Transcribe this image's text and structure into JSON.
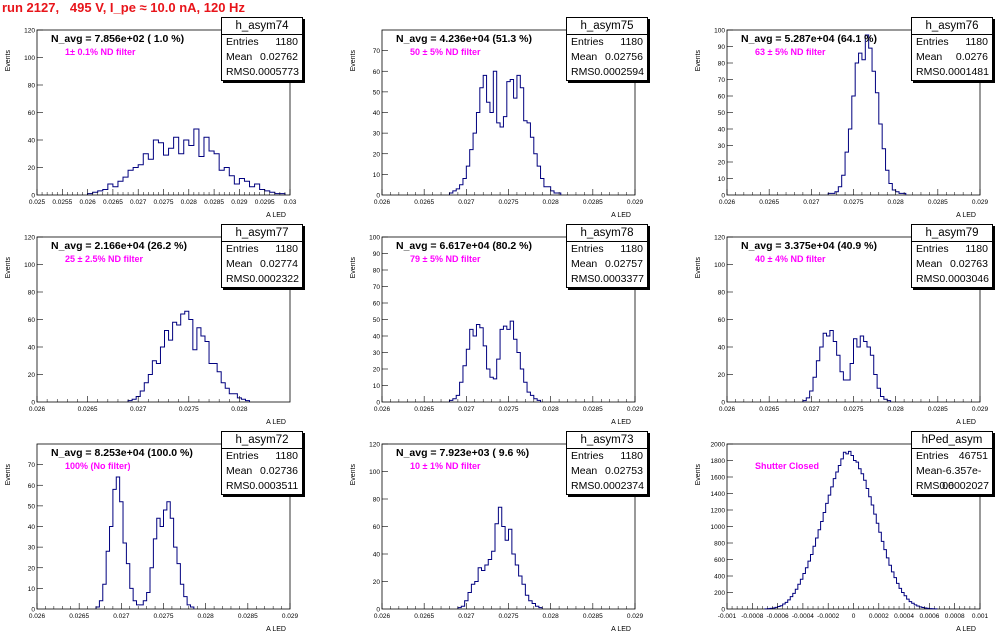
{
  "header": {
    "run_title": "run 2127,   495 V, I_pe ≈ 10.0 nA, 120 Hz"
  },
  "colors": {
    "title": "#e8141a",
    "filter_text": "#ff00ff",
    "histogram_line": "#00007f",
    "axes": "#000000"
  },
  "chart_data": [
    {
      "type": "histogram",
      "name": "h_asym74",
      "ylabel": "Events",
      "xlabel": "A_LED",
      "navg": "N_avg = 7.856e+02 ( 1.0 %)",
      "filter_label": "1± 0.1% ND filter",
      "xlim": [
        0.025,
        0.03
      ],
      "ylim": [
        0,
        120
      ],
      "xticks": [
        "0.025",
        "0.0255",
        "0.026",
        "0.0265",
        "0.027",
        "0.0275",
        "0.028",
        "0.0285",
        "0.029",
        "0.0295",
        "0.03"
      ],
      "yticks": [
        "20",
        "40",
        "60",
        "80",
        "100",
        "120"
      ],
      "stats": {
        "entries": "1180",
        "mean": "0.02762",
        "rms": "0.0005773"
      },
      "bins": {
        "x0": 0.026,
        "w": 0.0001,
        "counts": [
          1,
          2,
          3,
          4,
          8,
          6,
          10,
          13,
          18,
          20,
          22,
          30,
          26,
          40,
          38,
          29,
          34,
          42,
          30,
          40,
          36,
          48,
          28,
          42,
          32,
          30,
          18,
          20,
          14,
          8,
          12,
          10,
          6,
          8,
          4,
          3,
          2,
          1,
          1
        ]
      }
    },
    {
      "type": "histogram",
      "name": "h_asym75",
      "ylabel": "Events",
      "xlabel": "A_LED",
      "navg": "N_avg = 4.236e+04 (51.3 %)",
      "filter_label": "50 ± 5% ND filter",
      "xlim": [
        0.026,
        0.029
      ],
      "ylim": [
        0,
        80
      ],
      "xticks": [
        "0.026",
        "0.0265",
        "0.027",
        "0.0275",
        "0.028",
        "0.0285",
        "0.029"
      ],
      "yticks": [
        "10",
        "20",
        "30",
        "40",
        "50",
        "60",
        "70"
      ],
      "stats": {
        "entries": "1180",
        "mean": "0.02756",
        "rms": "0.0002594"
      },
      "bins": {
        "x0": 0.0268,
        "w": 4e-05,
        "counts": [
          1,
          2,
          3,
          5,
          8,
          14,
          22,
          30,
          40,
          52,
          58,
          45,
          40,
          60,
          35,
          33,
          38,
          55,
          56,
          47,
          58,
          52,
          36,
          35,
          28,
          20,
          14,
          8,
          4,
          4,
          2,
          1,
          1
        ]
      }
    },
    {
      "type": "histogram",
      "name": "h_asym76",
      "ylabel": "Events",
      "xlabel": "A_LED",
      "navg": "N_avg = 5.287e+04 (64.1 %)",
      "filter_label": "63 ± 5% ND filter",
      "xlim": [
        0.026,
        0.029
      ],
      "ylim": [
        0,
        100
      ],
      "xticks": [
        "0.026",
        "0.0265",
        "0.027",
        "0.0275",
        "0.028",
        "0.0285",
        "0.029"
      ],
      "yticks": [
        "10",
        "20",
        "30",
        "40",
        "50",
        "60",
        "70",
        "80",
        "90",
        "100"
      ],
      "stats": {
        "entries": "1180",
        "mean": "0.0276",
        "rms": "0.0001481"
      },
      "bins": {
        "x0": 0.0272,
        "w": 4e-05,
        "counts": [
          1,
          1,
          2,
          5,
          12,
          26,
          40,
          60,
          80,
          86,
          82,
          97,
          89,
          75,
          62,
          43,
          28,
          15,
          7,
          3,
          2,
          1,
          1
        ]
      }
    },
    {
      "type": "histogram",
      "name": "h_asym77",
      "ylabel": "Events",
      "xlabel": "A_LED",
      "navg": "N_avg = 2.166e+04 (26.2 %)",
      "filter_label": "25 ± 2.5% ND filter",
      "xlim": [
        0.026,
        0.0285
      ],
      "ylim": [
        0,
        120
      ],
      "xticks": [
        "0.026",
        "0.0265",
        "0.027",
        "0.0275",
        "0.028"
      ],
      "yticks": [
        "20",
        "40",
        "60",
        "80",
        "100",
        "120"
      ],
      "stats": {
        "entries": "1180",
        "mean": "0.02774",
        "rms": "0.0002322"
      },
      "bins": {
        "x0": 0.0269,
        "w": 4e-05,
        "counts": [
          1,
          2,
          4,
          8,
          14,
          20,
          30,
          28,
          40,
          52,
          45,
          58,
          56,
          64,
          66,
          60,
          38,
          54,
          48,
          44,
          28,
          28,
          22,
          14,
          10,
          6,
          6,
          3,
          2,
          1
        ]
      }
    },
    {
      "type": "histogram",
      "name": "h_asym78",
      "ylabel": "Events",
      "xlabel": "A_LED",
      "navg": "N_avg = 6.617e+04 (80.2 %)",
      "filter_label": "79 ± 5% ND filter",
      "xlim": [
        0.026,
        0.029
      ],
      "ylim": [
        0,
        100
      ],
      "xticks": [
        "0.026",
        "0.0265",
        "0.027",
        "0.0275",
        "0.028",
        "0.0285",
        "0.029"
      ],
      "yticks": [
        "10",
        "20",
        "30",
        "40",
        "50",
        "60",
        "70",
        "80",
        "90",
        "100"
      ],
      "stats": {
        "entries": "1180",
        "mean": "0.02757",
        "rms": "0.0003377"
      },
      "bins": {
        "x0": 0.0268,
        "w": 4e-05,
        "counts": [
          1,
          2,
          4,
          12,
          22,
          32,
          44,
          40,
          47,
          45,
          34,
          20,
          15,
          14,
          26,
          44,
          46,
          44,
          49,
          38,
          30,
          20,
          12,
          6,
          4,
          2,
          1
        ]
      }
    },
    {
      "type": "histogram",
      "name": "h_asym79",
      "ylabel": "Events",
      "xlabel": "A_LED",
      "navg": "N_avg = 3.375e+04 (40.9 %)",
      "filter_label": "40 ± 4% ND filter",
      "xlim": [
        0.026,
        0.029
      ],
      "ylim": [
        0,
        120
      ],
      "xticks": [
        "0.026",
        "0.0265",
        "0.027",
        "0.0275",
        "0.028",
        "0.0285",
        "0.029"
      ],
      "yticks": [
        "20",
        "40",
        "60",
        "80",
        "100",
        "120"
      ],
      "stats": {
        "entries": "1180",
        "mean": "0.02763",
        "rms": "0.0003046"
      },
      "bins": {
        "x0": 0.0269,
        "w": 4e-05,
        "counts": [
          1,
          3,
          8,
          18,
          30,
          40,
          50,
          48,
          52,
          44,
          34,
          22,
          16,
          16,
          28,
          46,
          40,
          48,
          44,
          40,
          34,
          20,
          10,
          4,
          2,
          1
        ]
      }
    },
    {
      "type": "histogram",
      "name": "h_asym72",
      "ylabel": "Events",
      "xlabel": "A_LED",
      "navg": "N_avg = 8.253e+04 (100.0 %)",
      "filter_label": "100% (No filter)",
      "xlim": [
        0.026,
        0.029
      ],
      "ylim": [
        0,
        80
      ],
      "xticks": [
        "0.026",
        "0.0265",
        "0.027",
        "0.0275",
        "0.028",
        "0.0285",
        "0.029"
      ],
      "yticks": [
        "10",
        "20",
        "30",
        "40",
        "50",
        "60",
        "70"
      ],
      "stats": {
        "entries": "1180",
        "mean": "0.02736",
        "rms": "0.0003511"
      },
      "bins": {
        "x0": 0.0267,
        "w": 4e-05,
        "counts": [
          1,
          4,
          12,
          28,
          40,
          58,
          64,
          52,
          32,
          22,
          10,
          4,
          2,
          2,
          4,
          8,
          20,
          34,
          44,
          40,
          48,
          52,
          44,
          30,
          22,
          12,
          6,
          2,
          1
        ]
      }
    },
    {
      "type": "histogram",
      "name": "h_asym73",
      "ylabel": "Events",
      "xlabel": "A_LED",
      "navg": "N_avg = 7.923e+03 ( 9.6 %)",
      "filter_label": "10 ± 1% ND filter",
      "xlim": [
        0.026,
        0.029
      ],
      "ylim": [
        0,
        120
      ],
      "xticks": [
        "0.026",
        "0.0265",
        "0.027",
        "0.0275",
        "0.028",
        "0.0285",
        "0.029"
      ],
      "yticks": [
        "20",
        "40",
        "60",
        "80",
        "100",
        "120"
      ],
      "stats": {
        "entries": "1180",
        "mean": "0.02753",
        "rms": "0.0002374"
      },
      "bins": {
        "x0": 0.0269,
        "w": 4e-05,
        "counts": [
          1,
          2,
          6,
          12,
          18,
          20,
          30,
          28,
          32,
          36,
          42,
          62,
          74,
          60,
          50,
          58,
          40,
          32,
          24,
          18,
          10,
          6,
          4,
          2,
          1
        ]
      }
    },
    {
      "type": "histogram",
      "name": "hPed_asym",
      "ylabel": "Events",
      "xlabel": "A_LED",
      "navg": "",
      "filter_label": "Shutter Closed",
      "xlim": [
        -0.001,
        0.001
      ],
      "ylim": [
        0,
        2000
      ],
      "xticks": [
        "-0.001",
        "-0.0008",
        "-0.0006",
        "-0.0004",
        "-0.0002",
        "0",
        "0.0002",
        "0.0004",
        "0.0006",
        "0.0008",
        "0.001"
      ],
      "yticks": [
        "200",
        "400",
        "600",
        "800",
        "1000",
        "1200",
        "1400",
        "1600",
        "1800",
        "2000"
      ],
      "stats": {
        "entries": "46751",
        "mean": "-6.357e-06",
        "rms": "0.0002027"
      },
      "bins": {
        "x0": -0.0007,
        "w": 2e-05,
        "counts": [
          2,
          4,
          8,
          12,
          20,
          30,
          40,
          60,
          80,
          110,
          150,
          190,
          240,
          300,
          360,
          430,
          500,
          580,
          660,
          760,
          860,
          960,
          1060,
          1170,
          1280,
          1380,
          1480,
          1580,
          1660,
          1740,
          1820,
          1900,
          1880,
          1910,
          1860,
          1800,
          1780,
          1700,
          1640,
          1560,
          1460,
          1360,
          1260,
          1150,
          1040,
          930,
          820,
          720,
          620,
          530,
          450,
          380,
          310,
          250,
          200,
          160,
          120,
          90,
          70,
          50,
          36,
          26,
          18,
          12,
          8,
          5,
          3,
          2
        ]
      }
    }
  ]
}
